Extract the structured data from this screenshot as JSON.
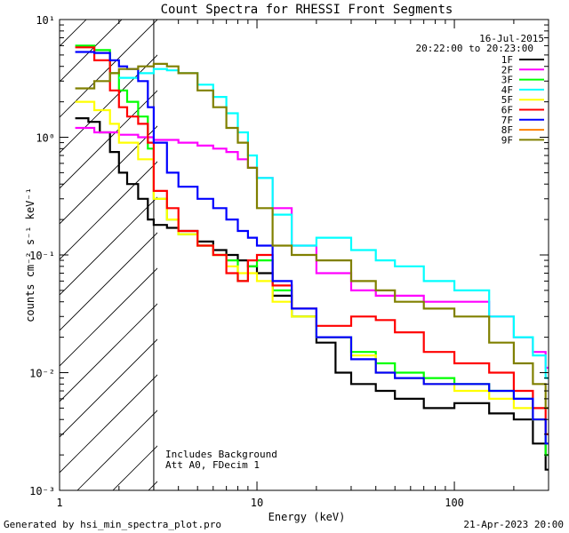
{
  "chart_data": {
    "type": "line",
    "title": "Count Spectra for RHESSI Front Segments",
    "xlabel": "Energy (keV)",
    "ylabel": "counts cm⁻² s⁻¹ keV⁻¹",
    "xscale": "log",
    "yscale": "log",
    "xlim": [
      1,
      300
    ],
    "ylim": [
      0.001,
      10
    ],
    "x_tick_labels": [
      "1",
      "10",
      "100"
    ],
    "y_tick_labels": [
      "10⁻³",
      "10⁻²",
      "10⁻¹",
      "10⁰",
      "10¹"
    ],
    "date": "16-Jul-2015",
    "time_range": "20:22:00 to 20:23:00",
    "shaded_region_max_keV": 3,
    "annotations": [
      "Includes Background",
      "Att A0, FDecim 1"
    ],
    "footer_left": "Generated by hsi_min_spectra_plot.pro",
    "footer_right": "21-Apr-2023 20:00",
    "series": [
      {
        "name": "1F",
        "color": "#000000",
        "x": [
          1.2,
          1.4,
          1.6,
          1.8,
          2,
          2.2,
          2.5,
          2.8,
          3.0,
          3.5,
          4,
          5,
          6,
          7,
          8,
          9,
          10,
          12,
          15,
          20,
          25,
          30,
          40,
          50,
          70,
          100,
          150,
          200,
          250,
          290
        ],
        "values": [
          1.45,
          1.35,
          1.1,
          0.75,
          0.5,
          0.4,
          0.3,
          0.2,
          0.18,
          0.17,
          0.16,
          0.13,
          0.11,
          0.1,
          0.09,
          0.08,
          0.07,
          0.045,
          0.03,
          0.018,
          0.01,
          0.008,
          0.007,
          0.006,
          0.005,
          0.0055,
          0.0045,
          0.004,
          0.0025,
          0.0015
        ]
      },
      {
        "name": "2F",
        "color": "#ff00ff",
        "x": [
          1.2,
          1.5,
          2,
          2.5,
          3,
          4,
          5,
          6,
          7,
          8,
          9,
          10,
          12,
          15,
          20,
          30,
          40,
          50,
          70,
          100,
          150,
          200,
          250,
          290
        ],
        "values": [
          1.2,
          1.1,
          1.05,
          1.0,
          0.95,
          0.9,
          0.85,
          0.8,
          0.75,
          0.65,
          0.55,
          0.45,
          0.25,
          0.12,
          0.07,
          0.05,
          0.045,
          0.045,
          0.04,
          0.04,
          0.03,
          0.02,
          0.015,
          0.011
        ]
      },
      {
        "name": "3F",
        "color": "#00ff00",
        "x": [
          1.2,
          1.5,
          1.8,
          2,
          2.2,
          2.5,
          2.8,
          3.0,
          3.5,
          4,
          5,
          6,
          7,
          8,
          9,
          10,
          12,
          15,
          20,
          30,
          40,
          50,
          70,
          100,
          150,
          200,
          250,
          290
        ],
        "values": [
          6.0,
          5.5,
          3.5,
          2.5,
          2.0,
          1.5,
          0.8,
          0.3,
          0.2,
          0.15,
          0.12,
          0.1,
          0.09,
          0.06,
          0.08,
          0.09,
          0.05,
          0.03,
          0.02,
          0.015,
          0.012,
          0.01,
          0.009,
          0.008,
          0.007,
          0.006,
          0.004,
          0.002
        ]
      },
      {
        "name": "4F",
        "color": "#00ffff",
        "x": [
          2,
          2.5,
          3,
          3.5,
          4,
          5,
          6,
          7,
          8,
          9,
          10,
          12,
          15,
          20,
          30,
          40,
          50,
          70,
          100,
          150,
          200,
          250,
          290
        ],
        "values": [
          3.2,
          3.5,
          3.8,
          3.7,
          3.5,
          2.8,
          2.2,
          1.6,
          1.1,
          0.7,
          0.45,
          0.22,
          0.12,
          0.14,
          0.11,
          0.09,
          0.08,
          0.06,
          0.05,
          0.03,
          0.02,
          0.014,
          0.009
        ]
      },
      {
        "name": "5F",
        "color": "#ffff00",
        "x": [
          1.2,
          1.5,
          1.8,
          2,
          2.5,
          3.0,
          3.5,
          4,
          5,
          6,
          7,
          8,
          10,
          12,
          15,
          20,
          30,
          40,
          50,
          70,
          100,
          150,
          200,
          250,
          290
        ],
        "values": [
          2.0,
          1.7,
          1.3,
          0.9,
          0.65,
          0.3,
          0.2,
          0.15,
          0.12,
          0.1,
          0.08,
          0.07,
          0.06,
          0.04,
          0.03,
          0.02,
          0.014,
          0.01,
          0.009,
          0.008,
          0.007,
          0.006,
          0.005,
          0.004,
          0.003
        ]
      },
      {
        "name": "6F",
        "color": "#ff0000",
        "x": [
          1.2,
          1.5,
          1.8,
          2,
          2.2,
          2.5,
          2.8,
          3.0,
          3.5,
          4,
          5,
          6,
          7,
          8,
          9,
          10,
          12,
          15,
          20,
          30,
          40,
          50,
          70,
          100,
          150,
          200,
          250,
          290
        ],
        "values": [
          5.8,
          4.5,
          2.5,
          1.8,
          1.5,
          1.3,
          0.9,
          0.35,
          0.25,
          0.16,
          0.12,
          0.1,
          0.07,
          0.06,
          0.09,
          0.1,
          0.055,
          0.035,
          0.025,
          0.03,
          0.028,
          0.022,
          0.015,
          0.012,
          0.01,
          0.007,
          0.005,
          0.003
        ]
      },
      {
        "name": "7F",
        "color": "#0000ff",
        "x": [
          1.2,
          1.5,
          1.8,
          2,
          2.2,
          2.5,
          2.8,
          3.0,
          3.5,
          4,
          5,
          6,
          7,
          8,
          9,
          10,
          12,
          15,
          20,
          30,
          40,
          50,
          70,
          100,
          150,
          200,
          250,
          290
        ],
        "values": [
          5.3,
          5.2,
          4.5,
          4.0,
          3.8,
          3.0,
          1.8,
          0.9,
          0.5,
          0.38,
          0.3,
          0.25,
          0.2,
          0.16,
          0.14,
          0.12,
          0.06,
          0.035,
          0.02,
          0.013,
          0.01,
          0.009,
          0.008,
          0.008,
          0.007,
          0.006,
          0.004,
          0.0025
        ]
      },
      {
        "name": "8F",
        "color": "#ff8000",
        "x": [],
        "values": []
      },
      {
        "name": "9F",
        "color": "#808000",
        "x": [
          1.2,
          1.5,
          1.8,
          2,
          2.5,
          3,
          3.5,
          4,
          5,
          6,
          7,
          8,
          9,
          10,
          12,
          15,
          20,
          30,
          40,
          50,
          70,
          100,
          150,
          200,
          250,
          290
        ],
        "values": [
          2.6,
          3.0,
          3.5,
          3.8,
          4.0,
          4.2,
          4.0,
          3.5,
          2.5,
          1.8,
          1.2,
          0.9,
          0.55,
          0.25,
          0.12,
          0.1,
          0.09,
          0.06,
          0.05,
          0.04,
          0.035,
          0.03,
          0.018,
          0.012,
          0.008,
          0.005
        ]
      }
    ]
  }
}
